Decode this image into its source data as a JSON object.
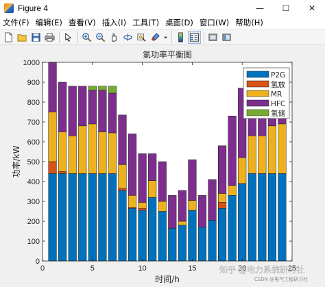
{
  "window": {
    "title": "Figure 4",
    "minimize_glyph": "—",
    "maximize_glyph": "☐",
    "close_glyph": "✕"
  },
  "menu": {
    "items": [
      "文件(F)",
      "编辑(E)",
      "查看(V)",
      "插入(I)",
      "工具(T)",
      "桌面(D)",
      "窗口(W)",
      "帮助(H)"
    ]
  },
  "toolbar": {
    "icons": [
      "new-file-icon",
      "open-file-icon",
      "save-icon",
      "print-icon",
      "pointer-icon",
      "zoom-in-icon",
      "zoom-out-icon",
      "pan-icon",
      "rotate-3d-icon",
      "data-cursor-icon",
      "brush-icon",
      "colorbar-icon",
      "legend-icon",
      "hide-plot-tools-icon",
      "show-plot-tools-icon"
    ]
  },
  "watermark": {
    "main": "知乎 @电力系统研习社",
    "sub": "CSDN @电气工程研习社"
  },
  "chart_data": {
    "type": "bar",
    "stacked": true,
    "title": "氢功率平衡图",
    "xlabel": "时间/h",
    "ylabel": "功率/kW",
    "xlim": [
      0,
      25
    ],
    "ylim": [
      0,
      1000
    ],
    "xticks": [
      0,
      5,
      10,
      15,
      20,
      25
    ],
    "yticks": [
      0,
      100,
      200,
      300,
      400,
      500,
      600,
      700,
      800,
      900,
      1000
    ],
    "grid": false,
    "legend_position": "top-right",
    "x": [
      1,
      2,
      3,
      4,
      5,
      6,
      7,
      8,
      9,
      10,
      11,
      12,
      13,
      14,
      15,
      16,
      17,
      18,
      19,
      20,
      21,
      22,
      23,
      24
    ],
    "series": [
      {
        "name": "P2G",
        "color": "#0072BD",
        "values": [
          440,
          440,
          440,
          440,
          440,
          440,
          440,
          355,
          265,
          255,
          320,
          250,
          165,
          180,
          255,
          170,
          205,
          265,
          330,
          390,
          440,
          440,
          440,
          440
        ]
      },
      {
        "name": "氢放",
        "color": "#D95319",
        "values": [
          60,
          10,
          0,
          0,
          0,
          0,
          0,
          10,
          5,
          10,
          0,
          0,
          0,
          0,
          0,
          0,
          0,
          30,
          0,
          0,
          0,
          0,
          0,
          0
        ]
      },
      {
        "name": "MR",
        "color": "#EDB120",
        "values": [
          250,
          200,
          190,
          240,
          250,
          210,
          205,
          120,
          60,
          30,
          85,
          50,
          0,
          20,
          50,
          0,
          0,
          45,
          50,
          130,
          190,
          190,
          240,
          250
        ]
      },
      {
        "name": "HFC",
        "color": "#7E2F8E",
        "values": [
          250,
          250,
          250,
          200,
          170,
          210,
          200,
          250,
          310,
          245,
          135,
          200,
          165,
          155,
          205,
          160,
          205,
          240,
          350,
          350,
          210,
          205,
          240,
          220
        ]
      },
      {
        "name": "氢储",
        "color": "#77AC30",
        "values": [
          0,
          0,
          0,
          0,
          20,
          20,
          35,
          0,
          0,
          0,
          0,
          0,
          0,
          0,
          0,
          0,
          0,
          0,
          0,
          0,
          0,
          0,
          0,
          0
        ]
      }
    ]
  }
}
